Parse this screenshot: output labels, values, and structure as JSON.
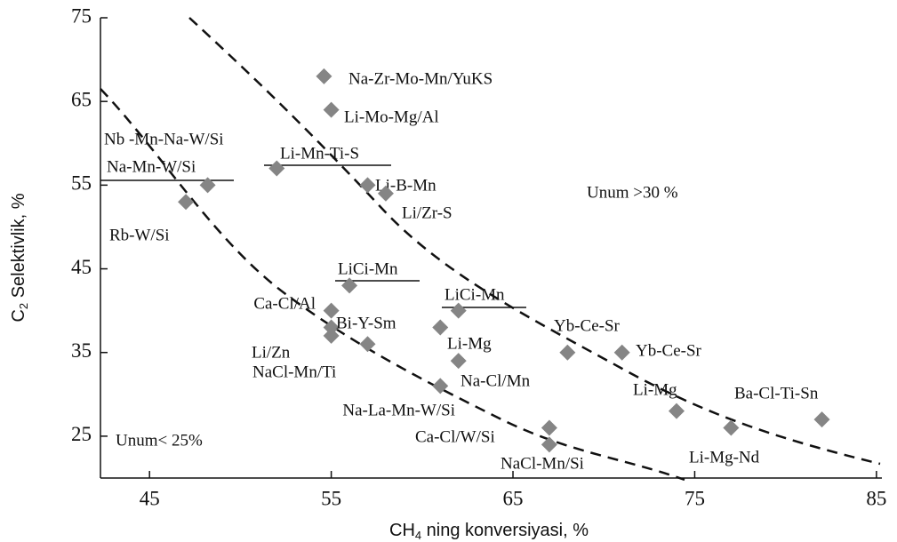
{
  "chart_data": {
    "type": "scatter",
    "x": [
      54.6,
      55,
      52,
      48.2,
      47,
      57,
      58,
      56,
      55,
      55,
      55,
      57,
      62,
      61,
      62,
      61,
      67,
      67,
      68,
      71,
      74,
      77,
      82
    ],
    "values": [
      68,
      64,
      57,
      55,
      53,
      55,
      54,
      43,
      40,
      38,
      37,
      36,
      40,
      38,
      34,
      31,
      26,
      24,
      35,
      35,
      28,
      26,
      27
    ],
    "point_labels": [
      "Na-Zr-Mo-Mn/YuKS",
      "Li-Mo-Mg/Al",
      "Li-Mn-Ti-S",
      "Na-Mn-W/Si",
      "Rb-W/Si",
      "Li-B-Mn",
      "Li/Zr-S",
      "LiCi-Mn",
      "Ca-Cl/Al",
      "Bi-Y-Sm",
      "Li/Zn",
      "NaCl-Mn/Ti",
      "LiCi-Mn",
      "Li-Mg",
      "Na-Cl/Mn",
      "Na-La-Mn-W/Si",
      "Ca-Cl/W/Si",
      "NaCl-Mn/Si",
      "Yb-Ce-Sr",
      "Yb-Ce-Sr",
      "Li-Mg",
      "Li-Mg-Nd",
      "Ba-Cl-Ti-Sn"
    ],
    "color": "#858585",
    "annotations": [
      "Nb -Mn-Na-W/Si",
      "Unum >30 %",
      "Unum< 25%"
    ],
    "xlabel": {
      "main": "CH",
      "sub": "4",
      "rest": " ning konversiyasi, %"
    },
    "ylabel": {
      "main": "C",
      "sub": "2",
      "rest": " Selektivlik, %"
    },
    "xlim": [
      42.3,
      85.3
    ],
    "ylim": [
      20,
      75
    ],
    "xticks": [
      45,
      55,
      65,
      75,
      85
    ],
    "yticks": [
      25,
      35,
      45,
      55,
      65,
      75
    ]
  }
}
